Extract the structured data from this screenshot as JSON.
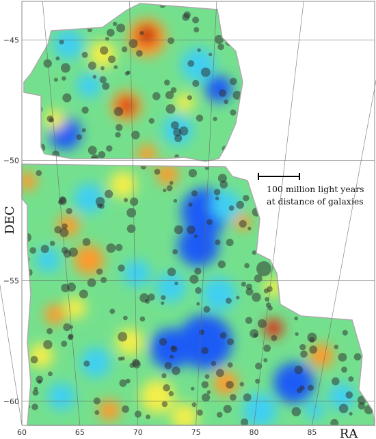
{
  "chart_data": {
    "type": "map",
    "xlabel": "RA",
    "ylabel": "DEC",
    "xlim": [
      60,
      90.4
    ],
    "ylim": [
      -61,
      -43.4
    ],
    "xticks": [
      60,
      65,
      70,
      75,
      80,
      85
    ],
    "yticks": [
      {
        "value": -45,
        "label": "−45"
      },
      {
        "value": -50,
        "label": "−50"
      },
      {
        "value": -55,
        "label": "−55"
      },
      {
        "value": -60,
        "label": "−60"
      }
    ],
    "grid": true,
    "annotation": [
      "100 million light years",
      "at distance of galaxies"
    ]
  }
}
